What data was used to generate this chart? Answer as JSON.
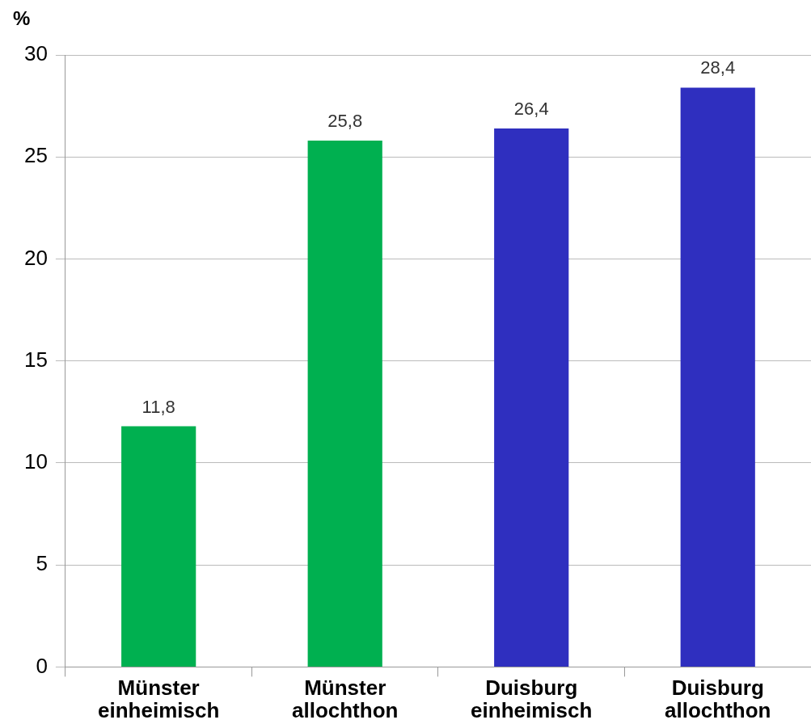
{
  "chart_data": {
    "type": "bar",
    "ylabel": "%",
    "categories": [
      "Münster einheimisch",
      "Münster allochthon",
      "Duisburg einheimisch",
      "Duisburg allochthon"
    ],
    "values": [
      11.8,
      25.8,
      26.4,
      28.4
    ],
    "value_labels": [
      "11,8",
      "25,8",
      "26,4",
      "28,4"
    ],
    "colors": [
      "#00b050",
      "#00b050",
      "#2f2fbf",
      "#2f2fbf"
    ],
    "ylim": [
      0,
      30
    ],
    "yticks": [
      0,
      5,
      10,
      15,
      20,
      25,
      30
    ],
    "grid": "y",
    "legend": false
  }
}
